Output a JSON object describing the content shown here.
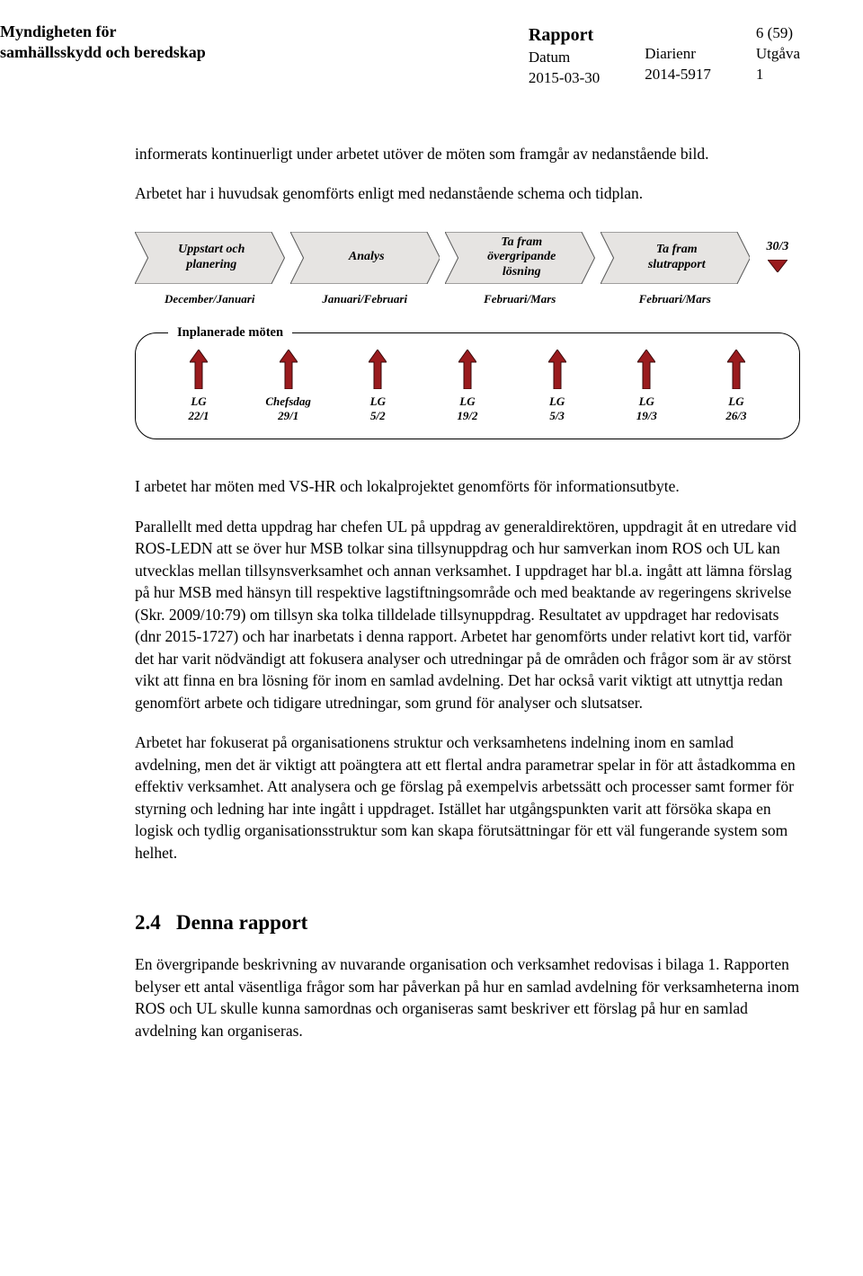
{
  "header": {
    "org_line1": "Myndigheten för",
    "org_line2": "samhällsskydd och beredskap",
    "col1_title": "Rapport",
    "col1_label": "Datum",
    "col1_value": "2015-03-30",
    "col2_label": "Diarienr",
    "col2_value": "2014-5917",
    "col3_page": "6 (59)",
    "col3_label": "Utgåva",
    "col3_value": "1"
  },
  "body": {
    "p1": "informerats kontinuerligt under arbetet utöver de möten som framgår av nedanstående bild.",
    "p2": "Arbetet har i huvudsak genomförts enligt med nedanstående schema och tidplan.",
    "p3": "I arbetet har möten med VS-HR och lokalprojektet genomförts för informationsutbyte.",
    "p4": "Parallellt med detta uppdrag har chefen UL på uppdrag av generaldirektören, uppdragit åt en utredare vid ROS-LEDN att se över hur MSB tolkar sina tillsynuppdrag och hur samverkan inom ROS och UL kan utvecklas mellan tillsynsverksamhet och annan verksamhet. I uppdraget har bl.a. ingått att lämna förslag på hur MSB med hänsyn till respektive lagstiftningsområde och med beaktande av regeringens skrivelse (Skr. 2009/10:79) om tillsyn ska tolka tilldelade tillsynuppdrag. Resultatet av uppdraget har redovisats (dnr 2015-1727) och har inarbetats i denna rapport. Arbetet har genomförts under relativt kort tid, varför det har varit nödvändigt att fokusera analyser och utredningar på de områden och frågor som är av störst vikt att finna en bra lösning för inom en samlad avdelning. Det har också varit viktigt att utnyttja redan genomfört arbete och tidigare utredningar, som grund för analyser och slutsatser.",
    "p5": "Arbetet har fokuserat på organisationens struktur och verksamhetens indelning inom en samlad avdelning, men det är viktigt att poängtera att ett flertal andra parametrar spelar in för att åstadkomma en effektiv verksamhet. Att analysera och ge förslag på exempelvis arbetssätt och processer samt former för styrning och ledning har inte ingått i uppdraget. Istället har utgångspunkten varit att försöka skapa en logisk och tydlig organisationsstruktur som kan skapa förutsättningar för ett väl fungerande system som helhet.",
    "p6": "En övergripande beskrivning av nuvarande organisation och verksamhet redovisas i bilaga 1. Rapporten belyser ett antal väsentliga frågor som har påverkan på hur en samlad avdelning för verksamheterna inom ROS och UL skulle kunna samordnas och organiseras samt beskriver ett förslag på hur en samlad avdelning kan organiseras."
  },
  "section": {
    "num": "2.4",
    "title": "Denna rapport"
  },
  "diagram": {
    "phase_fill": "#e6e4e2",
    "phase_fill_mid": "#d8d6d4",
    "phase_stroke": "#5a5a5a",
    "arrow_fill": "#9a1b1e",
    "arrow_stroke": "#3a0a0b",
    "phases": [
      {
        "label1": "Uppstart och",
        "label2": "planering",
        "time": "December/Januari"
      },
      {
        "label1": "Analys",
        "label2": "",
        "time": "Januari/Februari"
      },
      {
        "label1": "Ta fram",
        "label2": "övergripande",
        "label3": "lösning",
        "time": "Februari/Mars"
      },
      {
        "label1": "Ta fram",
        "label2": "slutrapport",
        "time": "Februari/Mars"
      }
    ],
    "end_date": "30/3",
    "meetings_label": "Inplanerade möten",
    "meetings": [
      {
        "l1": "LG",
        "l2": "22/1"
      },
      {
        "l1": "Chefsdag",
        "l2": "29/1"
      },
      {
        "l1": "LG",
        "l2": "5/2"
      },
      {
        "l1": "LG",
        "l2": "19/2"
      },
      {
        "l1": "LG",
        "l2": "5/3"
      },
      {
        "l1": "LG",
        "l2": "19/3"
      },
      {
        "l1": "LG",
        "l2": "26/3"
      }
    ]
  }
}
